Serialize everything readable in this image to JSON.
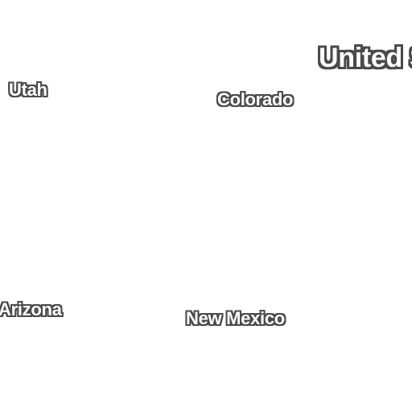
{
  "map": {
    "background_color": "#ffffff",
    "label_text_color": "#ffffff",
    "label_halo_color": "#4a4a4a",
    "labels": {
      "country": "United S",
      "states": {
        "utah": "Utah",
        "colorado": "Colorado",
        "arizona": "Arizona",
        "new_mexico": "New Mexico"
      }
    }
  }
}
